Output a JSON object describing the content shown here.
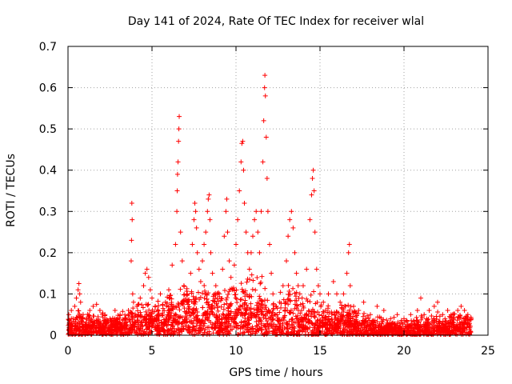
{
  "chart_data": {
    "type": "scatter",
    "title": "Day 141 of 2024, Rate Of TEC Index for receiver wlal",
    "xlabel": "GPS time / hours",
    "ylabel": "ROTI / TECUs",
    "xlim": [
      0,
      25
    ],
    "ylim": [
      0,
      0.7
    ],
    "xticks": [
      0,
      5,
      10,
      15,
      20,
      25
    ],
    "yticks": [
      0,
      0.1,
      0.2,
      0.3,
      0.4,
      0.5,
      0.6,
      0.7
    ],
    "xtick_labels": [
      "0",
      "5",
      "10",
      "15",
      "20",
      "25"
    ],
    "ytick_labels": [
      "0",
      "0.1",
      "0.2",
      "0.3",
      "0.4",
      "0.5",
      "0.6",
      "0.7"
    ],
    "grid": true,
    "marker": "+",
    "color": "#ff0000",
    "series": [
      {
        "name": "ROTI",
        "points": [
          [
            0.05,
            0.05
          ],
          [
            0.1,
            0.03
          ],
          [
            0.2,
            0.06
          ],
          [
            0.3,
            0.04
          ],
          [
            0.4,
            0.07
          ],
          [
            0.5,
            0.09
          ],
          [
            0.6,
            0.11
          ],
          [
            0.65,
            0.125
          ],
          [
            0.7,
            0.1
          ],
          [
            0.75,
            0.08
          ],
          [
            0.9,
            0.05
          ],
          [
            1.1,
            0.04
          ],
          [
            1.3,
            0.06
          ],
          [
            1.5,
            0.07
          ],
          [
            1.7,
            0.075
          ],
          [
            1.9,
            0.06
          ],
          [
            2.2,
            0.05
          ],
          [
            2.5,
            0.04
          ],
          [
            2.8,
            0.06
          ],
          [
            3.1,
            0.05
          ],
          [
            3.4,
            0.04
          ],
          [
            3.6,
            0.06
          ],
          [
            3.8,
            0.32
          ],
          [
            3.82,
            0.28
          ],
          [
            3.78,
            0.23
          ],
          [
            3.76,
            0.18
          ],
          [
            3.85,
            0.1
          ],
          [
            3.9,
            0.08
          ],
          [
            4.1,
            0.07
          ],
          [
            4.3,
            0.09
          ],
          [
            4.5,
            0.12
          ],
          [
            4.6,
            0.15
          ],
          [
            4.7,
            0.16
          ],
          [
            4.8,
            0.14
          ],
          [
            4.9,
            0.11
          ],
          [
            5.0,
            0.09
          ],
          [
            5.2,
            0.07
          ],
          [
            5.5,
            0.1
          ],
          [
            5.8,
            0.08
          ],
          [
            6.0,
            0.11
          ],
          [
            6.2,
            0.17
          ],
          [
            6.4,
            0.22
          ],
          [
            6.5,
            0.35
          ],
          [
            6.55,
            0.42
          ],
          [
            6.6,
            0.5
          ],
          [
            6.62,
            0.53
          ],
          [
            6.58,
            0.47
          ],
          [
            6.52,
            0.39
          ],
          [
            6.48,
            0.3
          ],
          [
            6.7,
            0.25
          ],
          [
            6.8,
            0.18
          ],
          [
            6.9,
            0.12
          ],
          [
            7.1,
            0.1
          ],
          [
            7.3,
            0.15
          ],
          [
            7.4,
            0.22
          ],
          [
            7.5,
            0.28
          ],
          [
            7.55,
            0.32
          ],
          [
            7.6,
            0.3
          ],
          [
            7.65,
            0.26
          ],
          [
            7.7,
            0.2
          ],
          [
            7.8,
            0.16
          ],
          [
            7.9,
            0.13
          ],
          [
            8.0,
            0.18
          ],
          [
            8.1,
            0.22
          ],
          [
            8.2,
            0.25
          ],
          [
            8.3,
            0.3
          ],
          [
            8.35,
            0.33
          ],
          [
            8.4,
            0.34
          ],
          [
            8.45,
            0.28
          ],
          [
            8.5,
            0.2
          ],
          [
            8.6,
            0.15
          ],
          [
            8.8,
            0.12
          ],
          [
            9.0,
            0.1
          ],
          [
            9.2,
            0.16
          ],
          [
            9.3,
            0.24
          ],
          [
            9.4,
            0.3
          ],
          [
            9.45,
            0.33
          ],
          [
            9.5,
            0.25
          ],
          [
            9.6,
            0.18
          ],
          [
            9.7,
            0.14
          ],
          [
            9.8,
            0.11
          ],
          [
            9.9,
            0.17
          ],
          [
            10.0,
            0.22
          ],
          [
            10.1,
            0.28
          ],
          [
            10.2,
            0.35
          ],
          [
            10.3,
            0.42
          ],
          [
            10.35,
            0.465
          ],
          [
            10.4,
            0.47
          ],
          [
            10.45,
            0.4
          ],
          [
            10.5,
            0.32
          ],
          [
            10.6,
            0.25
          ],
          [
            10.7,
            0.2
          ],
          [
            10.8,
            0.16
          ],
          [
            10.9,
            0.2
          ],
          [
            11.0,
            0.24
          ],
          [
            11.1,
            0.28
          ],
          [
            11.2,
            0.3
          ],
          [
            11.3,
            0.25
          ],
          [
            11.4,
            0.2
          ],
          [
            11.5,
            0.3
          ],
          [
            11.6,
            0.42
          ],
          [
            11.65,
            0.52
          ],
          [
            11.7,
            0.6
          ],
          [
            11.72,
            0.63
          ],
          [
            11.75,
            0.58
          ],
          [
            11.8,
            0.48
          ],
          [
            11.85,
            0.38
          ],
          [
            11.9,
            0.3
          ],
          [
            12.0,
            0.22
          ],
          [
            12.1,
            0.15
          ],
          [
            12.2,
            0.1
          ],
          [
            12.4,
            0.07
          ],
          [
            12.6,
            0.08
          ],
          [
            12.8,
            0.12
          ],
          [
            13.0,
            0.18
          ],
          [
            13.1,
            0.24
          ],
          [
            13.2,
            0.28
          ],
          [
            13.3,
            0.3
          ],
          [
            13.4,
            0.26
          ],
          [
            13.5,
            0.2
          ],
          [
            13.6,
            0.15
          ],
          [
            13.7,
            0.12
          ],
          [
            13.8,
            0.1
          ],
          [
            14.0,
            0.12
          ],
          [
            14.2,
            0.16
          ],
          [
            14.4,
            0.28
          ],
          [
            14.5,
            0.34
          ],
          [
            14.55,
            0.38
          ],
          [
            14.6,
            0.4
          ],
          [
            14.65,
            0.35
          ],
          [
            14.7,
            0.25
          ],
          [
            14.8,
            0.16
          ],
          [
            14.9,
            0.12
          ],
          [
            15.0,
            0.1
          ],
          [
            15.2,
            0.08
          ],
          [
            15.5,
            0.1
          ],
          [
            15.8,
            0.13
          ],
          [
            16.0,
            0.1
          ],
          [
            16.2,
            0.08
          ],
          [
            16.4,
            0.1
          ],
          [
            16.6,
            0.15
          ],
          [
            16.7,
            0.2
          ],
          [
            16.75,
            0.22
          ],
          [
            16.8,
            0.12
          ],
          [
            17.0,
            0.07
          ],
          [
            17.3,
            0.06
          ],
          [
            17.6,
            0.08
          ],
          [
            18.0,
            0.05
          ],
          [
            18.4,
            0.07
          ],
          [
            18.8,
            0.06
          ],
          [
            19.2,
            0.04
          ],
          [
            19.6,
            0.05
          ],
          [
            20.0,
            0.04
          ],
          [
            20.4,
            0.05
          ],
          [
            20.8,
            0.06
          ],
          [
            21.0,
            0.09
          ],
          [
            21.2,
            0.05
          ],
          [
            21.5,
            0.06
          ],
          [
            21.8,
            0.07
          ],
          [
            22.0,
            0.08
          ],
          [
            22.3,
            0.05
          ],
          [
            22.6,
            0.06
          ],
          [
            22.9,
            0.05
          ],
          [
            23.2,
            0.06
          ],
          [
            23.4,
            0.07
          ],
          [
            23.6,
            0.06
          ],
          [
            23.8,
            0.05
          ],
          [
            24.0,
            0.04
          ]
        ]
      }
    ],
    "background_density": [
      [
        0,
        0.035
      ],
      [
        0.5,
        0.05
      ],
      [
        1,
        0.04
      ],
      [
        1.5,
        0.045
      ],
      [
        2,
        0.04
      ],
      [
        2.5,
        0.035
      ],
      [
        3,
        0.04
      ],
      [
        3.5,
        0.04
      ],
      [
        4,
        0.05
      ],
      [
        4.5,
        0.07
      ],
      [
        5,
        0.06
      ],
      [
        5.5,
        0.06
      ],
      [
        6,
        0.07
      ],
      [
        6.5,
        0.09
      ],
      [
        7,
        0.08
      ],
      [
        7.5,
        0.1
      ],
      [
        8,
        0.09
      ],
      [
        8.5,
        0.1
      ],
      [
        9,
        0.08
      ],
      [
        9.5,
        0.09
      ],
      [
        10,
        0.1
      ],
      [
        10.5,
        0.1
      ],
      [
        11,
        0.11
      ],
      [
        11.5,
        0.1
      ],
      [
        12,
        0.08
      ],
      [
        12.5,
        0.07
      ],
      [
        13,
        0.09
      ],
      [
        13.5,
        0.08
      ],
      [
        14,
        0.07
      ],
      [
        14.5,
        0.08
      ],
      [
        15,
        0.06
      ],
      [
        15.5,
        0.05
      ],
      [
        16,
        0.05
      ],
      [
        16.5,
        0.06
      ],
      [
        17,
        0.045
      ],
      [
        17.5,
        0.04
      ],
      [
        18,
        0.035
      ],
      [
        18.5,
        0.035
      ],
      [
        19,
        0.03
      ],
      [
        19.5,
        0.03
      ],
      [
        20,
        0.025
      ],
      [
        20.5,
        0.03
      ],
      [
        21,
        0.035
      ],
      [
        21.5,
        0.035
      ],
      [
        22,
        0.04
      ],
      [
        22.5,
        0.035
      ],
      [
        23,
        0.04
      ],
      [
        23.5,
        0.04
      ],
      [
        24,
        0.035
      ]
    ]
  }
}
